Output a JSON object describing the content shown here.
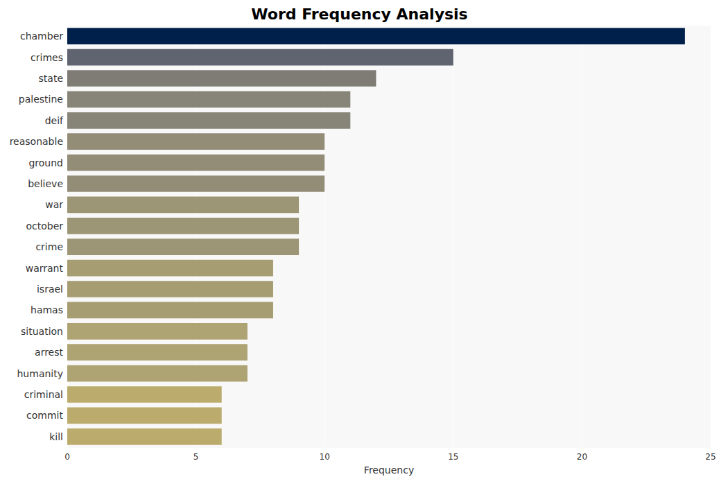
{
  "chart_data": {
    "type": "bar",
    "orientation": "horizontal",
    "title": "Word Frequency Analysis",
    "x_label": "Frequency",
    "categories": [
      "chamber",
      "crimes",
      "state",
      "palestine",
      "deif",
      "reasonable",
      "ground",
      "believe",
      "war",
      "october",
      "crime",
      "warrant",
      "israel",
      "hamas",
      "situation",
      "arrest",
      "humanity",
      "criminal",
      "commit",
      "kill"
    ],
    "values": [
      24,
      15,
      12,
      11,
      11,
      10,
      10,
      10,
      9,
      9,
      9,
      8,
      8,
      8,
      7,
      7,
      7,
      6,
      6,
      6
    ],
    "colors": [
      "#00204c",
      "#5f6470",
      "#7f7c75",
      "#878478",
      "#878478",
      "#938d78",
      "#938d78",
      "#938d78",
      "#9c9576",
      "#9c9576",
      "#9c9576",
      "#a69d73",
      "#a69d73",
      "#a69d73",
      "#aea372",
      "#aea372",
      "#aea372",
      "#bbac6e",
      "#bbac6e",
      "#bbac6e"
    ],
    "xlim": [
      0,
      25
    ],
    "xticks": [
      0,
      5,
      10,
      15,
      20,
      25
    ],
    "grid": true
  }
}
